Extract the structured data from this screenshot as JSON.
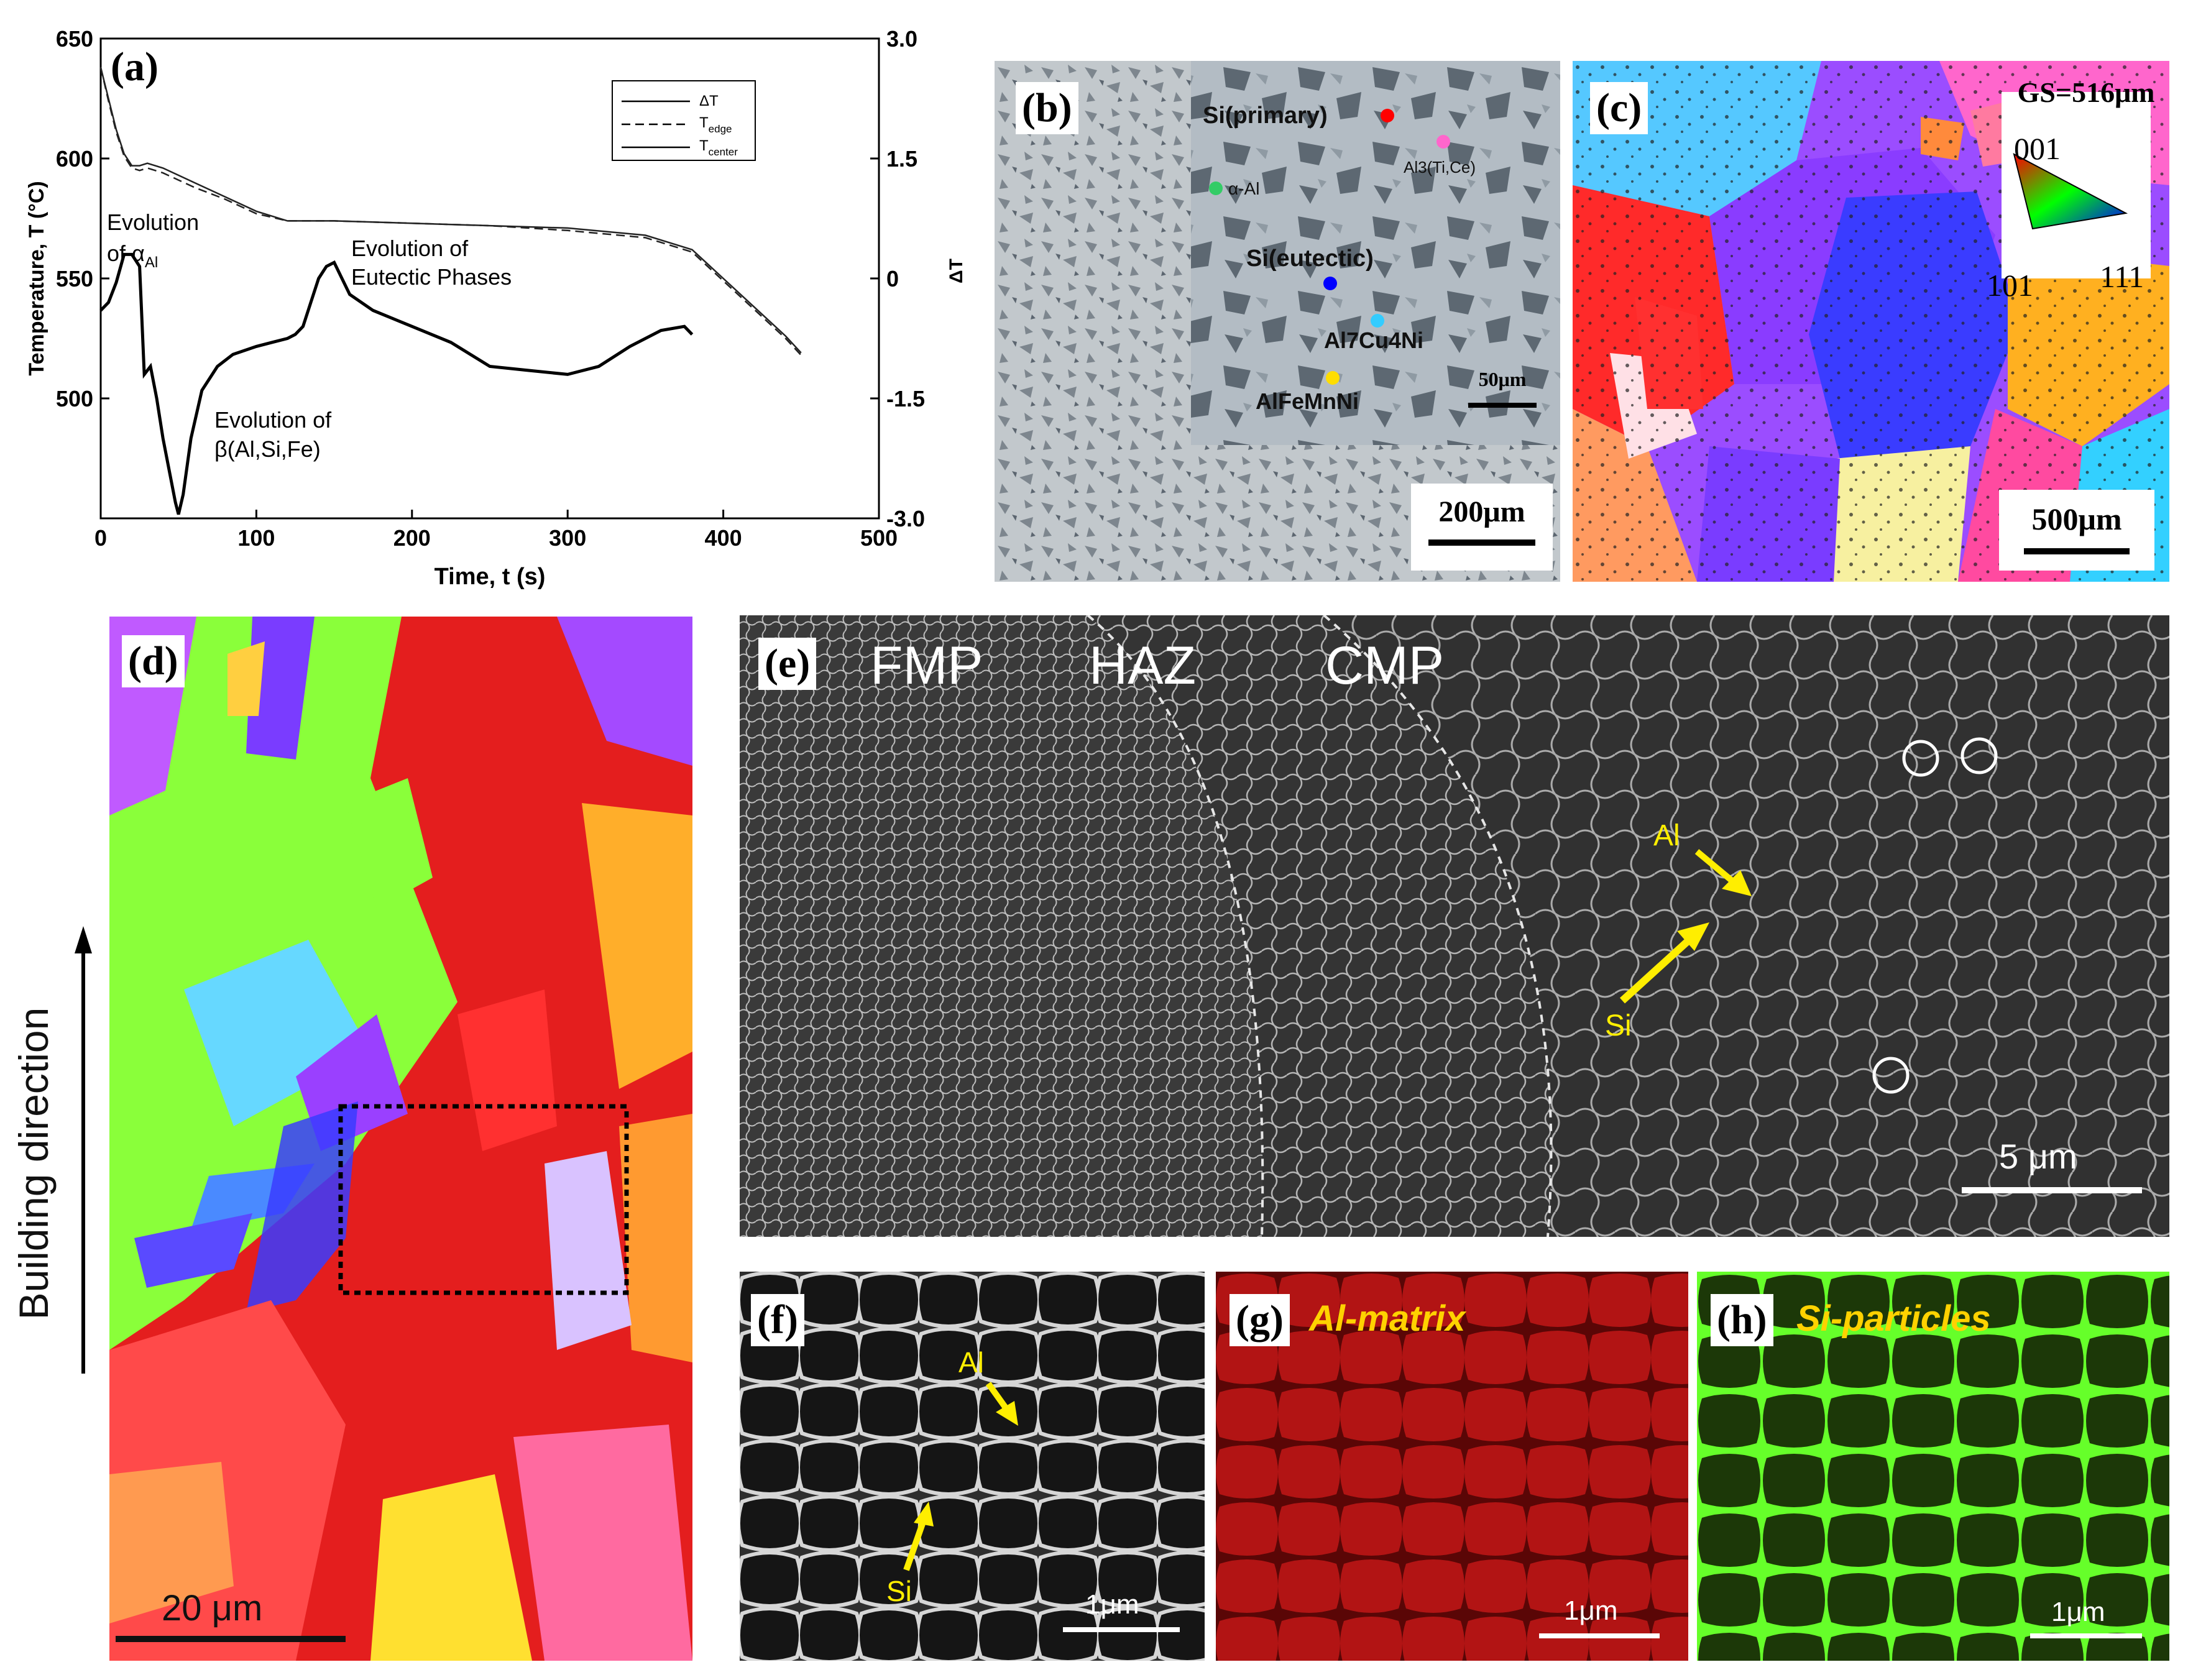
{
  "panel_labels": {
    "a": "(a)",
    "b": "(b)",
    "c": "(c)",
    "d": "(d)",
    "e": "(e)",
    "f": "(f)",
    "g": "(g)",
    "h": "(h)"
  },
  "chart_data": {
    "type": "line",
    "xlabel": "Time, t (s)",
    "ylabel": "Temperature, T (°C)",
    "y2label": "ΔT",
    "xlim": [
      0,
      500
    ],
    "ylim": [
      450,
      650
    ],
    "y2lim": [
      -3.0,
      3.0
    ],
    "x_ticks": [
      "0",
      "100",
      "200",
      "300",
      "400",
      "500"
    ],
    "y_ticks": [
      "500",
      "550",
      "600",
      "650"
    ],
    "y2_ticks": [
      "-3.0",
      "-1.5",
      "0",
      "1.5",
      "3.0"
    ],
    "legend": [
      "ΔT",
      "T",
      "T"
    ],
    "legend_subscripts": [
      "",
      "edge",
      "center"
    ],
    "legend_position": "top-right",
    "annotations": {
      "alpha_1": "Evolution",
      "alpha_2": "of α",
      "alpha_sub": "Al",
      "eutectic_1": "Evolution of",
      "eutectic_2": "Eutectic Phases",
      "beta_1": "Evolution of",
      "beta_2": "β(Al,Si,Fe)"
    },
    "series": [
      {
        "name": "T",
        "axis": "left",
        "x": [
          0,
          5,
          10,
          15,
          20,
          25,
          30,
          40,
          50,
          60,
          80,
          100,
          120,
          130,
          150,
          200,
          250,
          300,
          350,
          380,
          400,
          420,
          440,
          450
        ],
        "y": [
          638,
          625,
          612,
          602,
          597,
          597,
          598,
          596,
          593,
          590,
          584,
          578,
          574,
          574,
          574,
          573,
          572,
          571,
          568,
          562,
          550,
          538,
          526,
          519
        ]
      },
      {
        "name": "T",
        "axis": "left",
        "x": [
          0,
          5,
          10,
          15,
          20,
          25,
          30,
          40,
          50,
          60,
          80,
          100,
          120,
          130,
          150,
          200,
          250,
          300,
          350,
          380,
          400,
          420,
          440,
          450
        ],
        "y": [
          638,
          624,
          611,
          601,
          596,
          595,
          596,
          594,
          591,
          588,
          583,
          577,
          574,
          574,
          574,
          573,
          572,
          570,
          567,
          561,
          549,
          537,
          525,
          518
        ]
      },
      {
        "name": "ΔT",
        "axis": "right",
        "x": [
          0,
          5,
          10,
          15,
          20,
          25,
          28,
          32,
          36,
          40,
          45,
          48,
          50,
          53,
          58,
          65,
          75,
          85,
          100,
          110,
          120,
          125,
          130,
          135,
          140,
          145,
          150,
          160,
          175,
          200,
          225,
          250,
          275,
          300,
          320,
          340,
          360,
          375,
          380
        ],
        "y": [
          -0.4,
          -0.3,
          -0.05,
          0.3,
          0.3,
          0.15,
          -1.2,
          -1.1,
          -1.5,
          -2.0,
          -2.5,
          -2.8,
          -2.95,
          -2.7,
          -2.0,
          -1.4,
          -1.1,
          -0.95,
          -0.85,
          -0.8,
          -0.75,
          -0.7,
          -0.6,
          -0.3,
          0.0,
          0.15,
          0.2,
          -0.2,
          -0.4,
          -0.6,
          -0.8,
          -1.1,
          -1.15,
          -1.2,
          -1.1,
          -0.85,
          -0.65,
          -0.6,
          -0.7
        ]
      }
    ]
  },
  "panel_b": {
    "scalebar": "200μm",
    "inset_scalebar": "50μm",
    "phases": [
      {
        "label": "Si(primary)",
        "color": "#ff0000"
      },
      {
        "label": "Al3(Ti,Ce)",
        "color": "#ff66cc"
      },
      {
        "label": "α-Al",
        "color": "#33cc66"
      },
      {
        "label": "Si(eutectic)",
        "color": "#0000ff"
      },
      {
        "label": "Al7Cu4Ni",
        "color": "#33ccff"
      },
      {
        "label": "AlFeMnNi",
        "color": "#ffdd00"
      }
    ]
  },
  "panel_c": {
    "gs": "GS=516μm",
    "ipf_001": "001",
    "ipf_101": "101",
    "ipf_111": "111",
    "scalebar": "500μm"
  },
  "panel_d": {
    "building_direction": "Building direction",
    "scalebar": "20 μm"
  },
  "panel_e": {
    "FMP": "FMP",
    "HAZ": "HAZ",
    "CMP": "CMP",
    "al": "Al",
    "si": "Si",
    "scalebar": "5 μm"
  },
  "panel_f": {
    "al": "Al",
    "si": "Si",
    "scalebar": "1μm"
  },
  "panel_g": {
    "title": "Al-matrix",
    "scalebar": "1μm"
  },
  "panel_h": {
    "title": "Si-particles",
    "scalebar": "1μm"
  }
}
